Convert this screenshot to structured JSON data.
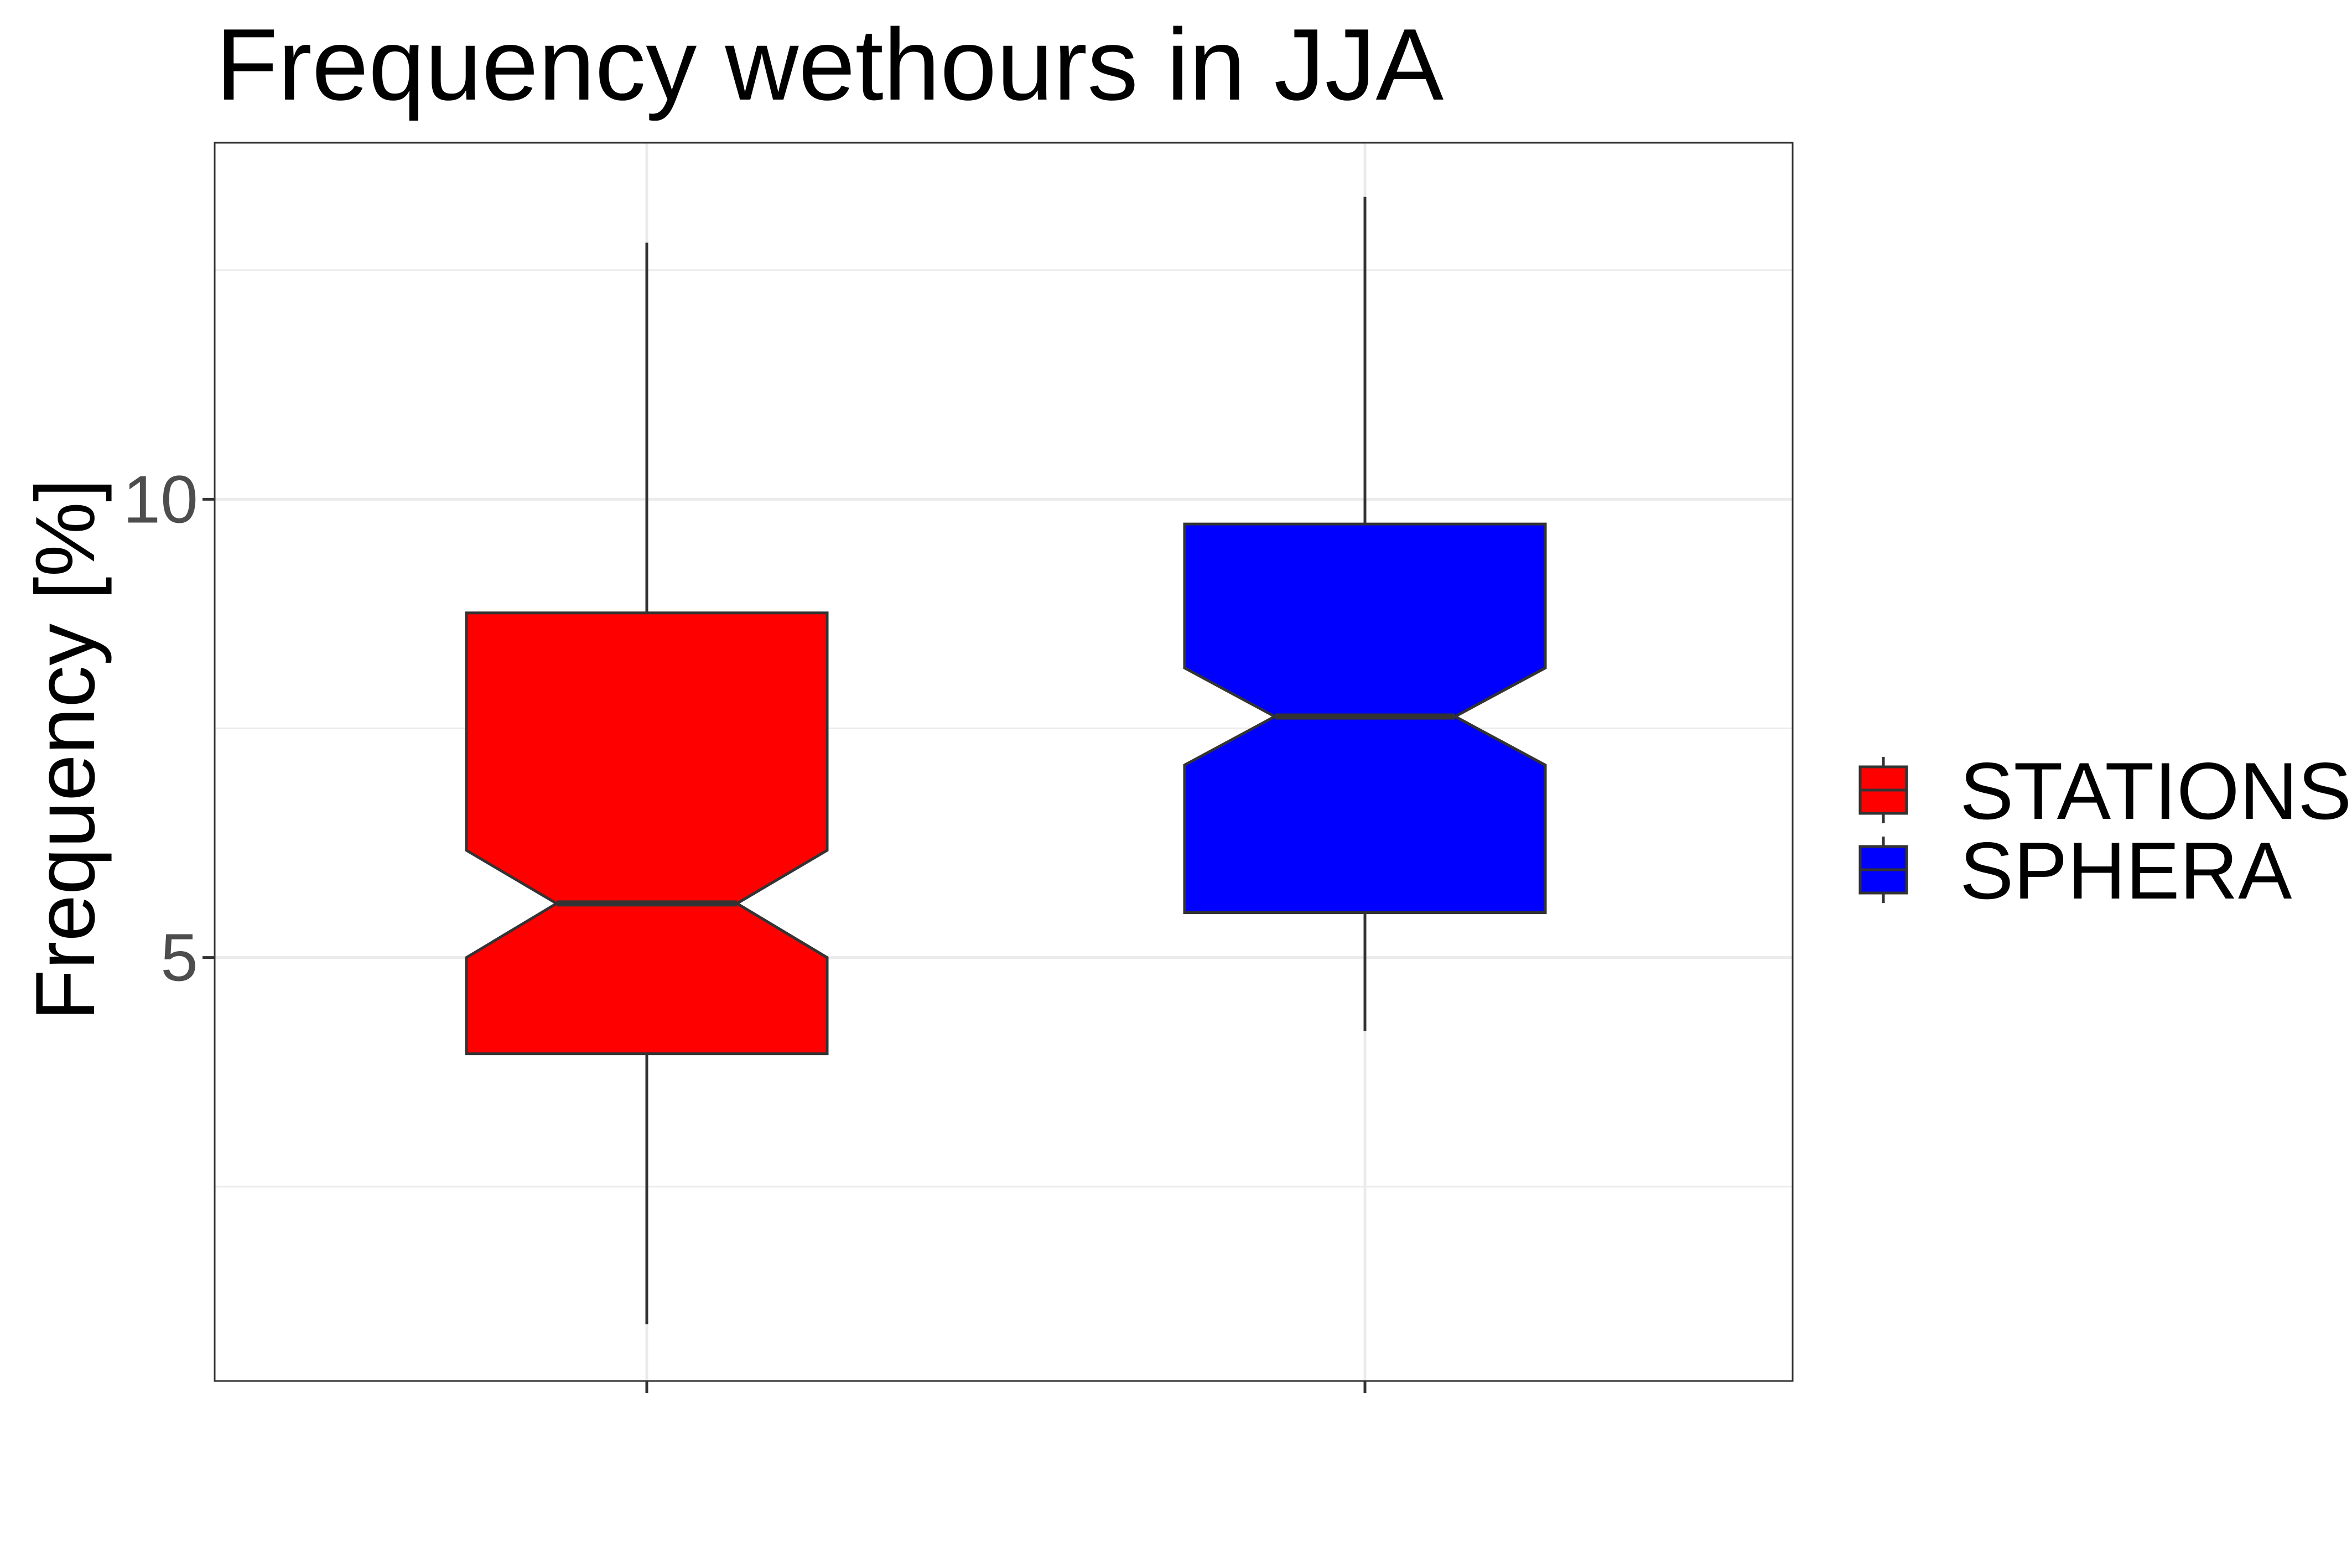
{
  "chart_data": {
    "type": "boxplot",
    "title": "Frequency wethours in JJA",
    "xlabel": "",
    "ylabel": "Frequency [%]",
    "ylim": [
      0.38,
      13.89
    ],
    "y_ticks": [
      5,
      10
    ],
    "y_minor_ticks": [
      2.5,
      7.5,
      12.5
    ],
    "grid": true,
    "notched": true,
    "legend_position": "right",
    "series": [
      {
        "name": "STATIONS",
        "color": "#ff0000",
        "whisker_low": 1.0,
        "q1": 3.95,
        "notch_low": 5.0,
        "median": 5.59,
        "notch_high": 6.17,
        "q3": 8.76,
        "whisker_high": 12.8
      },
      {
        "name": "SPHERA",
        "color": "#0000ff",
        "whisker_low": 4.2,
        "q1": 5.49,
        "notch_low": 7.1,
        "median": 7.63,
        "notch_high": 8.16,
        "q3": 9.73,
        "whisker_high": 13.3
      }
    ]
  }
}
